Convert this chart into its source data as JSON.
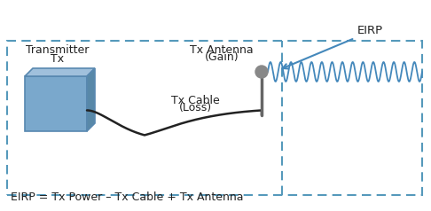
{
  "bg_color": "#ffffff",
  "box_color": "#7aa8cc",
  "box_face_color": "#7aa8cc",
  "box_top_color": "#a0c0dc",
  "box_right_color": "#5888a8",
  "box_edge_color": "#5888b0",
  "dashed_rect_color": "#5599bb",
  "cable_color": "#222222",
  "antenna_ball_color": "#888888",
  "antenna_stick_color": "#666666",
  "wave_color": "#4488bb",
  "arrow_color": "#4488bb",
  "text_color": "#222222",
  "transmitter_label_line1": "Transmitter",
  "transmitter_label_line2": "Tx",
  "antenna_label_line1": "Tx Antenna",
  "antenna_label_line2": "(Gain)",
  "cable_label_line1": "Tx Cable",
  "cable_label_line2": "(Loss)",
  "eirp_label": "EIRP",
  "formula": "EIRP = Tx Power – Tx Cable + Tx Antenna",
  "fig_width": 4.86,
  "fig_height": 2.38,
  "dpi": 100
}
